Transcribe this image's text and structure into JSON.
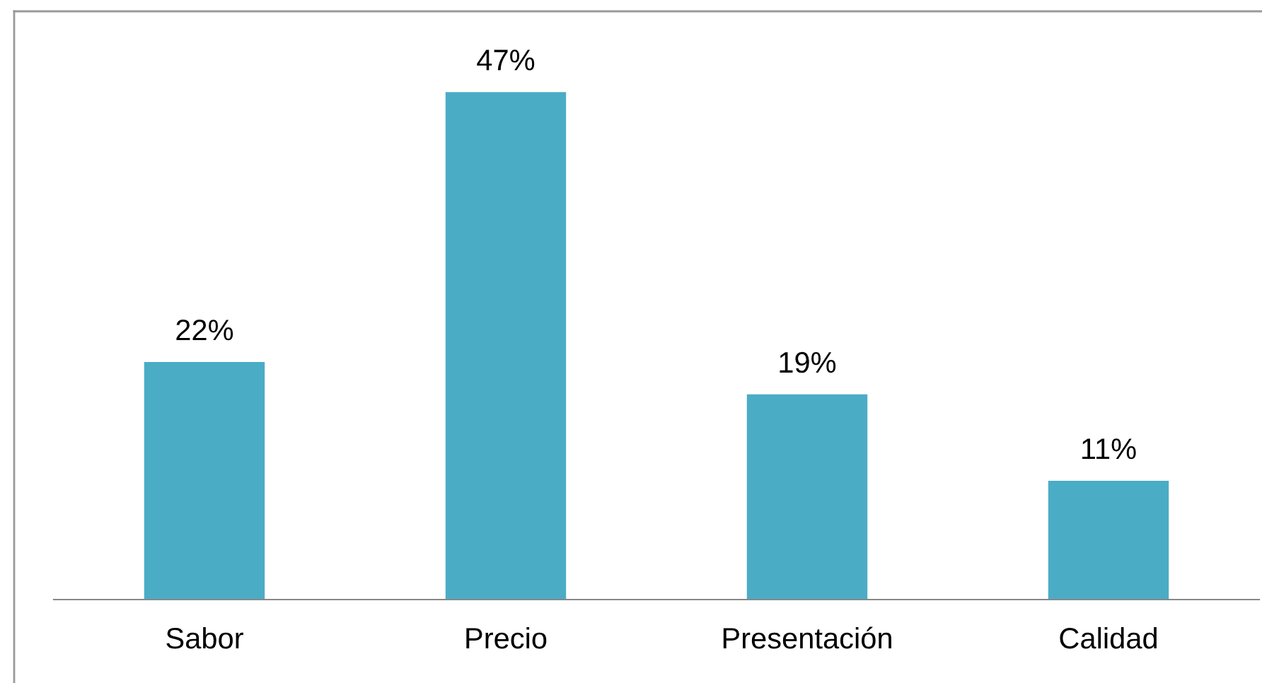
{
  "chart_data": {
    "type": "bar",
    "categories": [
      "Sabor",
      "Precio",
      "Presentación",
      "Calidad"
    ],
    "values": [
      22,
      47,
      19,
      11
    ],
    "value_labels": [
      "22%",
      "47%",
      "19%",
      "11%"
    ],
    "color": "#4bacc6",
    "grid": false,
    "legend": false
  }
}
